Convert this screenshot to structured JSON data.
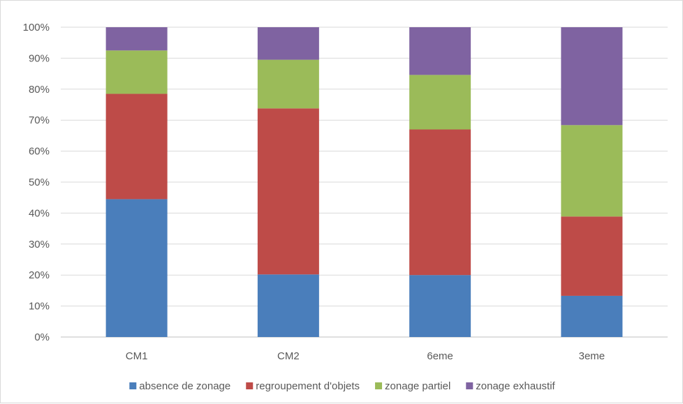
{
  "chart_data": {
    "type": "bar",
    "stacked": true,
    "percent": true,
    "title": "",
    "xlabel": "",
    "ylabel": "",
    "ylim": [
      0,
      100
    ],
    "yticks": [
      "0%",
      "10%",
      "20%",
      "30%",
      "40%",
      "50%",
      "60%",
      "70%",
      "80%",
      "90%",
      "100%"
    ],
    "grid": true,
    "legend_position": "bottom",
    "categories": [
      "CM1",
      "CM2",
      "6eme",
      "3eme"
    ],
    "series": [
      {
        "name": "absence de zonage",
        "color": "#4a7ebb",
        "values": [
          44.5,
          20.2,
          20.0,
          13.3
        ]
      },
      {
        "name": "regroupement d'objets",
        "color": "#be4b48",
        "values": [
          34.0,
          53.6,
          47.0,
          25.6
        ]
      },
      {
        "name": "zonage partiel",
        "color": "#9bbb59",
        "values": [
          14.0,
          15.7,
          17.6,
          29.5
        ]
      },
      {
        "name": "zonage exhaustif",
        "color": "#7f63a1",
        "values": [
          7.5,
          10.5,
          15.4,
          31.6
        ]
      }
    ]
  }
}
